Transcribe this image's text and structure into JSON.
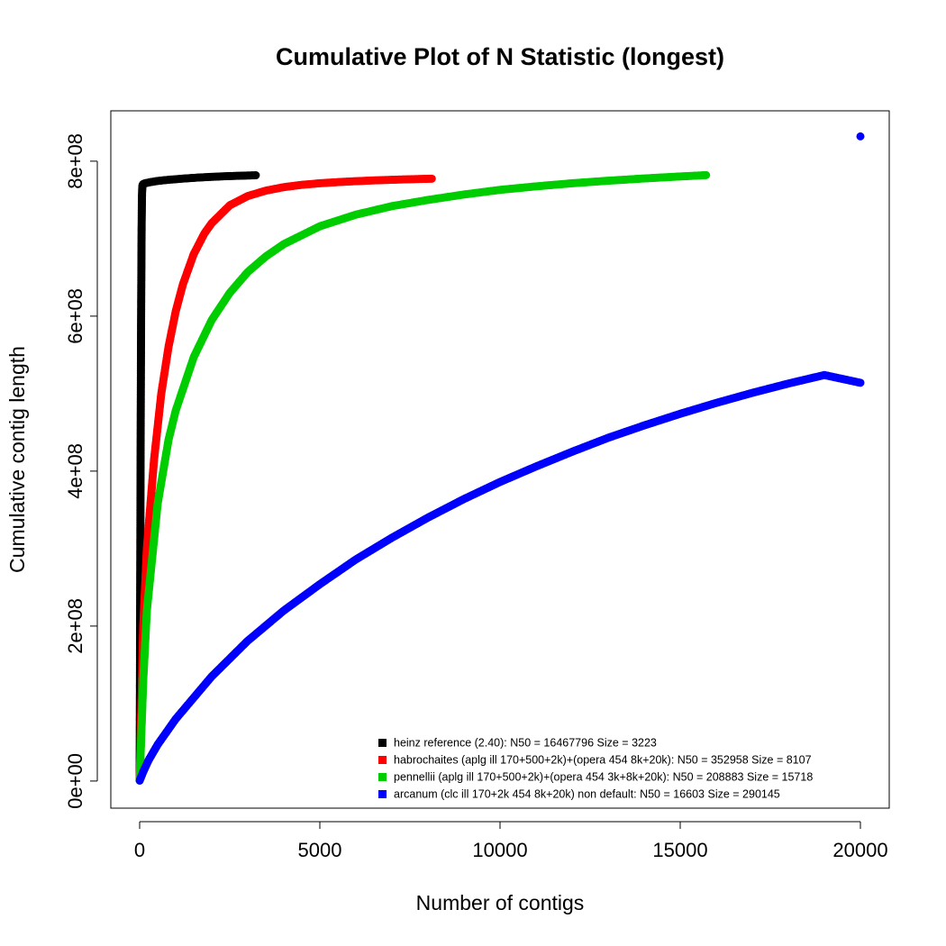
{
  "chart_data": {
    "type": "scatter",
    "title": "Cumulative Plot of N Statistic (longest)",
    "xlabel": "Number of contigs",
    "ylabel": "Cumulative contig length",
    "xlim": [
      -800,
      20800
    ],
    "ylim": [
      -35000000,
      865000000
    ],
    "x_ticks": [
      0,
      5000,
      10000,
      15000,
      20000
    ],
    "x_tick_labels": [
      "0",
      "5000",
      "10000",
      "15000",
      "20000"
    ],
    "y_ticks": [
      0,
      200000000,
      400000000,
      600000000,
      800000000
    ],
    "y_tick_labels": [
      "0e+00",
      "2e+08",
      "4e+08",
      "6e+08",
      "8e+08"
    ],
    "grid": false,
    "legend_position": "bottom-right",
    "series": [
      {
        "name": "heinz reference (2.40): N50 = 16467796 Size = 3223",
        "color": "#000000",
        "x": [
          1,
          5,
          10,
          15,
          20,
          25,
          30,
          35,
          40,
          45,
          50,
          55,
          60,
          65,
          70,
          75,
          80,
          90,
          100,
          120,
          150,
          200,
          300,
          500,
          800,
          1200,
          1600,
          2000,
          2500,
          3000,
          3223
        ],
        "y": [
          5000000,
          80000000,
          160000000,
          240000000,
          320000000,
          400000000,
          470000000,
          535000000,
          590000000,
          640000000,
          680000000,
          715000000,
          740000000,
          755000000,
          763000000,
          767000000,
          769000000,
          770000000,
          770500000,
          771000000,
          771500000,
          772000000,
          773000000,
          774500000,
          776000000,
          777500000,
          778800000,
          779800000,
          780800000,
          781500000,
          781800000
        ]
      },
      {
        "name": "habrochaites (aplg ill 170+500+2k)+(opera 454 8k+20k): N50 = 352958 Size = 8107",
        "color": "#ff0000",
        "x": [
          1,
          100,
          200,
          400,
          600,
          800,
          1000,
          1200,
          1500,
          1800,
          2000,
          2500,
          3000,
          3500,
          4000,
          4500,
          5000,
          5500,
          6000,
          6500,
          7000,
          7500,
          8107
        ],
        "y": [
          1000000,
          200000000,
          300000000,
          415000000,
          500000000,
          560000000,
          606000000,
          641000000,
          680000000,
          707000000,
          720000000,
          743000000,
          755000000,
          762000000,
          766500000,
          769500000,
          771500000,
          773000000,
          774200000,
          775200000,
          776000000,
          776700000,
          777400000
        ]
      },
      {
        "name": "pennellii (aplg ill 170+500+2k)+(opera 454 3k+8k+20k): N50 = 208883 Size = 15718",
        "color": "#00cd00",
        "x": [
          1,
          100,
          200,
          500,
          800,
          1000,
          1500,
          2000,
          2500,
          3000,
          3500,
          4000,
          5000,
          6000,
          7000,
          8000,
          9000,
          10000,
          11000,
          12000,
          13000,
          14000,
          15000,
          15718
        ],
        "y": [
          1000000,
          130000000,
          220000000,
          358000000,
          440000000,
          478000000,
          547000000,
          595000000,
          630000000,
          657000000,
          677000000,
          693000000,
          716000000,
          731000000,
          742000000,
          750000000,
          757000000,
          763000000,
          767500000,
          771500000,
          774800000,
          777700000,
          780300000,
          782000000
        ]
      },
      {
        "name": "arcanum (clc ill 170+2k 454 8k+20k) non default: N50 = 16603 Size = 290145",
        "color": "#0000ff",
        "x": [
          1,
          100,
          250,
          500,
          1000,
          2000,
          3000,
          4000,
          5000,
          6000,
          7000,
          8000,
          9000,
          10000,
          11000,
          12000,
          13000,
          14000,
          15000,
          16000,
          17000,
          18000,
          19000,
          20000
        ],
        "y": [
          500000,
          12000000,
          27000000,
          47000000,
          80000000,
          135000000,
          181000000,
          220000000,
          254000000,
          286000000,
          314000000,
          340000000,
          364000000,
          386000000,
          406000000,
          425000000,
          443000000,
          459000000,
          474000000,
          488000000,
          501000000,
          513000000,
          524000000,
          514000000
        ]
      },
      {
        "name": "",
        "color": "#0000ff",
        "x": [
          20000
        ],
        "y": [
          832000000
        ]
      }
    ]
  }
}
